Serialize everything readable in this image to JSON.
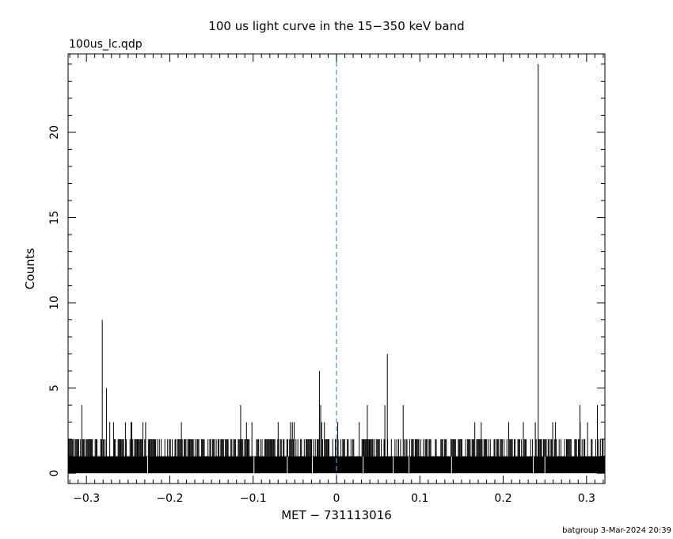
{
  "chart_data": {
    "type": "bar",
    "title": "100 us light curve in the 15−350 keV band",
    "file_label": "100us_lc.qdp",
    "xlabel": "MET − 731113016",
    "ylabel": "Counts",
    "xlim": [
      -0.322,
      0.322
    ],
    "ylim": [
      -0.6,
      24.6
    ],
    "x_ticks": [
      -0.3,
      -0.2,
      -0.1,
      0,
      0.1,
      0.2,
      0.3
    ],
    "x_tick_labels": [
      "−0.3",
      "−0.2",
      "−0.1",
      "0",
      "0.1",
      "0.2",
      "0.3"
    ],
    "y_ticks": [
      0,
      5,
      10,
      15,
      20
    ],
    "y_tick_labels": [
      "0",
      "5",
      "10",
      "15",
      "20"
    ],
    "bin_width": 0.0001,
    "baseline_counts": 1,
    "frequent_level_counts": 2,
    "trigger_line_x": 0,
    "trigger_line_color": "#2aa3b8",
    "notable_bins": [
      {
        "x": -0.3055,
        "y": 4
      },
      {
        "x": -0.281,
        "y": 9
      },
      {
        "x": -0.276,
        "y": 5
      },
      {
        "x": -0.272,
        "y": 3
      },
      {
        "x": -0.229,
        "y": 3
      },
      {
        "x": -0.115,
        "y": 4
      },
      {
        "x": -0.07,
        "y": 3
      },
      {
        "x": -0.0205,
        "y": 6
      },
      {
        "x": -0.019,
        "y": 4
      },
      {
        "x": 0.0015,
        "y": 3
      },
      {
        "x": 0.037,
        "y": 4
      },
      {
        "x": 0.058,
        "y": 4
      },
      {
        "x": 0.061,
        "y": 7
      },
      {
        "x": 0.08,
        "y": 4
      },
      {
        "x": 0.242,
        "y": 24
      },
      {
        "x": 0.292,
        "y": 4
      },
      {
        "x": 0.313,
        "y": 4
      }
    ],
    "grid": false,
    "footer": "batgroup  3-Mar-2024 20:39"
  }
}
